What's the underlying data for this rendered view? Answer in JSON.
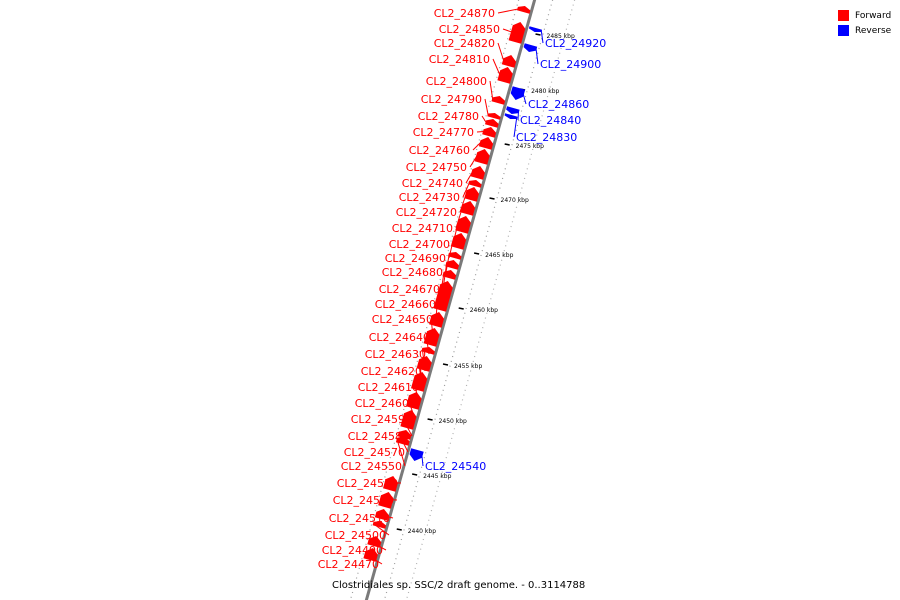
{
  "title": "Clostridiales sp. SSC/2 draft genome. - 0..3114788",
  "legend": [
    {
      "label": "Forward",
      "color": "#ff0000"
    },
    {
      "label": "Reverse",
      "color": "#0000ff"
    }
  ],
  "colors": {
    "forward": "#ff0000",
    "reverse": "#0000ff",
    "backbone": "#7a7a7a"
  },
  "ticks": [
    "2485 kbp",
    "2480 kbp",
    "2475 kbp",
    "2470 kbp",
    "2465 kbp",
    "2460 kbp",
    "2455 kbp",
    "2450 kbp",
    "2445 kbp",
    "2440 kbp"
  ],
  "genes": [
    {
      "id": "CL2_24870",
      "strand": "forward"
    },
    {
      "id": "CL2_24850",
      "strand": "forward"
    },
    {
      "id": "CL2_24820",
      "strand": "forward"
    },
    {
      "id": "CL2_24810",
      "strand": "forward"
    },
    {
      "id": "CL2_24800",
      "strand": "forward"
    },
    {
      "id": "CL2_24790",
      "strand": "forward"
    },
    {
      "id": "CL2_24780",
      "strand": "forward"
    },
    {
      "id": "CL2_24770",
      "strand": "forward"
    },
    {
      "id": "CL2_24760",
      "strand": "forward"
    },
    {
      "id": "CL2_24750",
      "strand": "forward"
    },
    {
      "id": "CL2_24740",
      "strand": "forward"
    },
    {
      "id": "CL2_24730",
      "strand": "forward"
    },
    {
      "id": "CL2_24720",
      "strand": "forward"
    },
    {
      "id": "CL2_24710",
      "strand": "forward"
    },
    {
      "id": "CL2_24700",
      "strand": "forward"
    },
    {
      "id": "CL2_24690",
      "strand": "forward"
    },
    {
      "id": "CL2_24680",
      "strand": "forward"
    },
    {
      "id": "CL2_24670",
      "strand": "forward"
    },
    {
      "id": "CL2_24660",
      "strand": "forward"
    },
    {
      "id": "CL2_24650",
      "strand": "forward"
    },
    {
      "id": "CL2_24640",
      "strand": "forward"
    },
    {
      "id": "CL2_24630",
      "strand": "forward"
    },
    {
      "id": "CL2_24620",
      "strand": "forward"
    },
    {
      "id": "CL2_24610",
      "strand": "forward"
    },
    {
      "id": "CL2_24600",
      "strand": "forward"
    },
    {
      "id": "CL2_24590",
      "strand": "forward"
    },
    {
      "id": "CL2_24580",
      "strand": "forward"
    },
    {
      "id": "CL2_24570",
      "strand": "forward"
    },
    {
      "id": "CL2_24550",
      "strand": "forward"
    },
    {
      "id": "CL2_24530",
      "strand": "forward"
    },
    {
      "id": "CL2_24520",
      "strand": "forward"
    },
    {
      "id": "CL2_24510",
      "strand": "forward"
    },
    {
      "id": "CL2_24500",
      "strand": "forward"
    },
    {
      "id": "CL2_24490",
      "strand": "forward"
    },
    {
      "id": "CL2_24470",
      "strand": "forward"
    },
    {
      "id": "CL2_24920",
      "strand": "reverse"
    },
    {
      "id": "CL2_24900",
      "strand": "reverse"
    },
    {
      "id": "CL2_24860",
      "strand": "reverse"
    },
    {
      "id": "CL2_24840",
      "strand": "reverse"
    },
    {
      "id": "CL2_24830",
      "strand": "reverse"
    },
    {
      "id": "CL2_24540",
      "strand": "reverse"
    }
  ]
}
